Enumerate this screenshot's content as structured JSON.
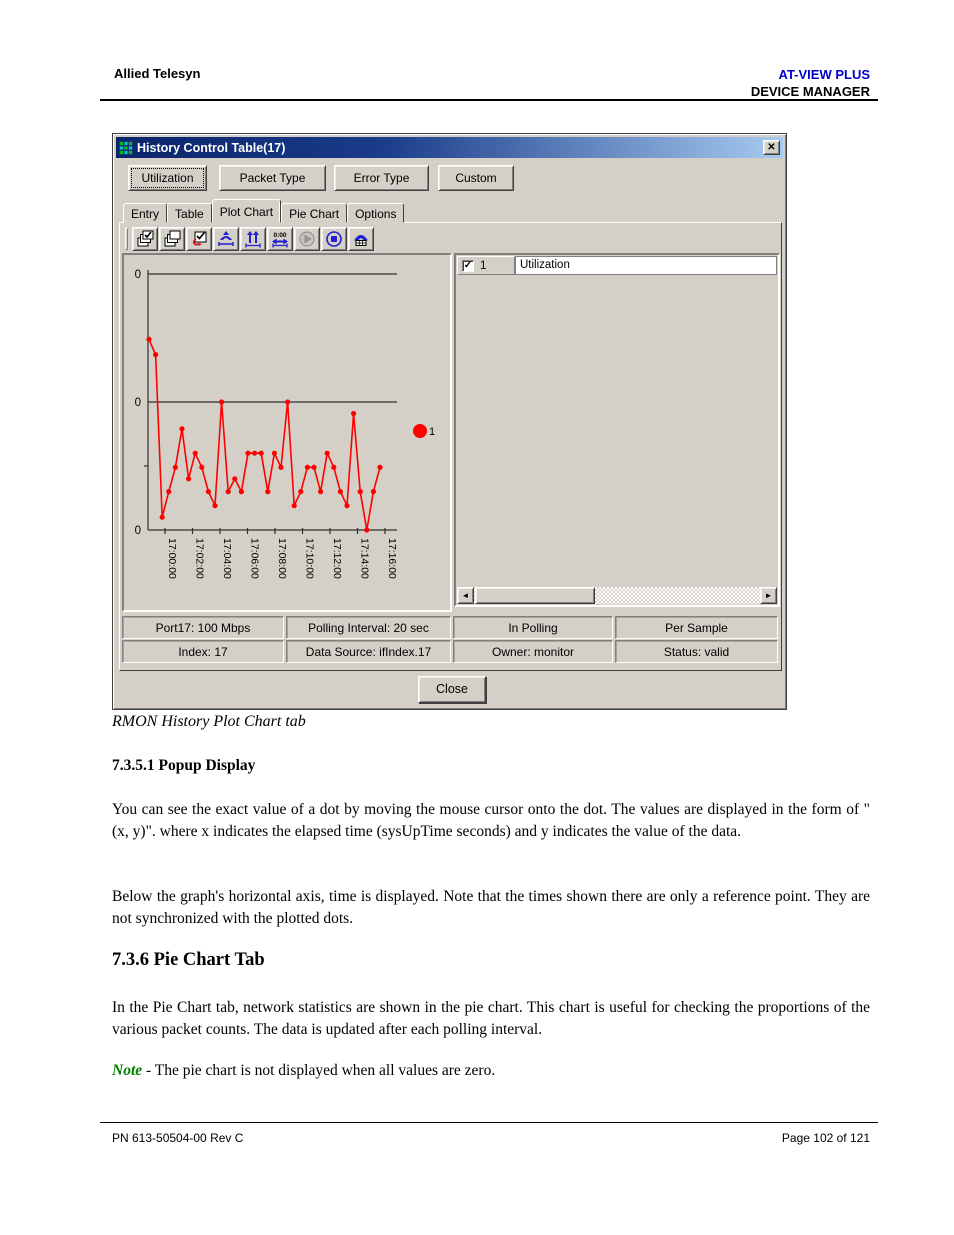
{
  "page": {
    "header": {
      "left": "Allied Telesyn",
      "right_line1": "AT-VIEW PLUS",
      "right_line2": "DEVICE MANAGER"
    },
    "caption": "RMON History Plot Chart tab",
    "sections": [
      {
        "heading": "7.3.5.1 Popup Display",
        "paragraphs": [
          "You can see the exact value of a dot by moving the mouse cursor onto the dot. The values are displayed in the form of \"(x, y)\". where x indicates the elapsed time (sysUpTime seconds) and y indicates the value of the data.",
          "Below the graph's horizontal axis, time is displayed. Note that the times shown there are only a reference point. They are not synchronized with the plotted dots."
        ]
      },
      {
        "heading": "7.3.6 Pie Chart Tab",
        "paragraphs": [
          "In the Pie Chart tab, network statistics are shown in the pie chart. This chart is useful for checking the proportions of the various packet counts. The data is updated after each polling interval."
        ]
      }
    ],
    "note_label": "Note",
    "note_text": " - The pie chart is not displayed when all values are zero.",
    "footer": {
      "left": "PN 613-50504-00 Rev C",
      "right": "Page 102 of 121"
    }
  },
  "dialog": {
    "title": "History Control Table(17)",
    "close_glyph": "✕",
    "type_buttons": [
      "Utilization",
      "Packet Type",
      "Error Type",
      "Custom"
    ],
    "tabs": [
      "Entry",
      "Table",
      "Plot Chart",
      "Pie Chart",
      "Options"
    ],
    "active_tab": "Plot Chart",
    "toolbar_icon_names": [
      "apply-all-icon",
      "copy-pages-icon",
      "apply-change-icon",
      "graph-rescale-icon",
      "graph-zoom-vertical-icon",
      "time-interval-icon",
      "start-polling-icon",
      "stop-polling-icon",
      "graph-summary-icon"
    ],
    "time_interval_icon_text": "0:00",
    "list_row": {
      "checked": true,
      "check_glyph": "✓",
      "index": "1",
      "name": "Utilization"
    },
    "scrollbar": {
      "left_glyph": "◄",
      "right_glyph": "►"
    },
    "status_cells": [
      [
        "Port17: 100 Mbps",
        "Polling Interval: 20 sec",
        "In Polling",
        "Per Sample"
      ],
      [
        "Index: 17",
        "Data Source: ifIndex.17",
        "Owner: monitor",
        "Status: valid"
      ]
    ],
    "close_button": "Close"
  },
  "colors": {
    "window_gray": "#d4d0c8",
    "titlebar_gradient_start": "#0a246a",
    "titlebar_gradient_end": "#a6caf0",
    "chart_line": "#ff0000",
    "header_brand_blue": "#0000cc",
    "note_green": "#008000",
    "toolbar_icon_blue": "#2020d0"
  },
  "chart_data": {
    "type": "line",
    "title": "",
    "xlabel": "",
    "ylabel": "",
    "ylim": [
      0,
      2
    ],
    "y_gridlines": [
      1,
      2
    ],
    "y_tick_labels": [
      "0",
      "0",
      "0"
    ],
    "x_tick_labels": [
      "17:00:00",
      "17:02:00",
      "17:04:00",
      "17:06:00",
      "17:08:00",
      "17:10:00",
      "17:12:00",
      "17:14:00",
      "17:16:00"
    ],
    "legend": {
      "label": "1",
      "position": "right-of-plot"
    },
    "series": [
      {
        "name": "1",
        "color": "#ff0000",
        "values": [
          1.49,
          1.37,
          0.1,
          0.3,
          0.49,
          0.79,
          0.4,
          0.6,
          0.49,
          0.3,
          0.19,
          1.0,
          0.3,
          0.4,
          0.3,
          0.6,
          0.6,
          0.6,
          0.3,
          0.6,
          0.49,
          1.0,
          0.19,
          0.3,
          0.49,
          0.49,
          0.3,
          0.6,
          0.49,
          0.3,
          0.19,
          0.91,
          0.3,
          0.0,
          0.3,
          0.49
        ]
      }
    ]
  }
}
